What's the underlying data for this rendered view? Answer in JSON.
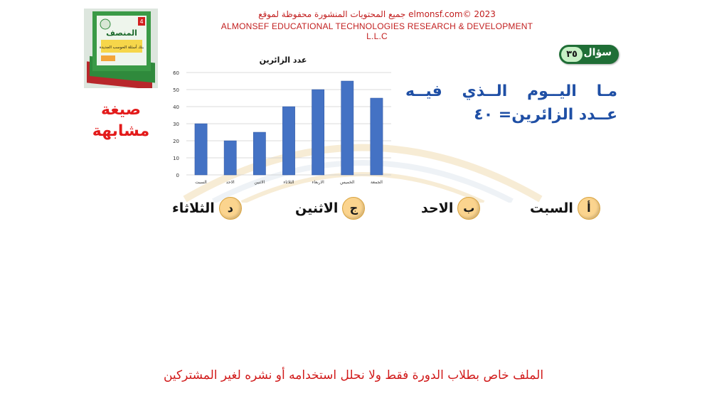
{
  "header": {
    "copyright_ar": "جميع المحتويات المنشورة محفوظة لموقع elmonsf.com© 2023",
    "company_en": "ALMONSEF EDUCATIONAL TECHNOLOGIES RESEARCH & DEVELOPMENT L.L.C"
  },
  "book": {
    "title": "المنصف",
    "subtitle": "بنك أسئلة الحوسب الجديدة",
    "grade": "4"
  },
  "side_label": {
    "line1": "صيغة",
    "line2": "مشابهة"
  },
  "question": {
    "word": "سؤال",
    "number": "٣٥",
    "text": "مـا اليــوم الــذي فيــه عــدد الزائرين= ٤٠"
  },
  "chart_data": {
    "type": "bar",
    "title": "عدد الزائرين",
    "categories": [
      "السبت",
      "الاحد",
      "الاثنين",
      "الثلاثاء",
      "الاربعاء",
      "الخميس",
      "الجمعة"
    ],
    "values": [
      30,
      20,
      25,
      40,
      50,
      55,
      45
    ],
    "ylim": [
      0,
      60
    ],
    "yticks": [
      0,
      10,
      20,
      30,
      40,
      50,
      60
    ],
    "grid": true,
    "bar_color": "#4472c4"
  },
  "options": [
    {
      "letter": "أ",
      "text": "السبت"
    },
    {
      "letter": "ب",
      "text": "الاحد"
    },
    {
      "letter": "ج",
      "text": "الاثنين"
    },
    {
      "letter": "د",
      "text": "الثلاثاء"
    }
  ],
  "footer": {
    "notice": "الملف خاص بطلاب الدورة فقط ولا نحلل استخدامه أو نشره لغير المشتركين"
  },
  "colors": {
    "accent_red": "#c21f1f",
    "question_blue": "#1f4fa5",
    "badge_green": "#1f6e36",
    "option_circle": "#fbd48e"
  }
}
